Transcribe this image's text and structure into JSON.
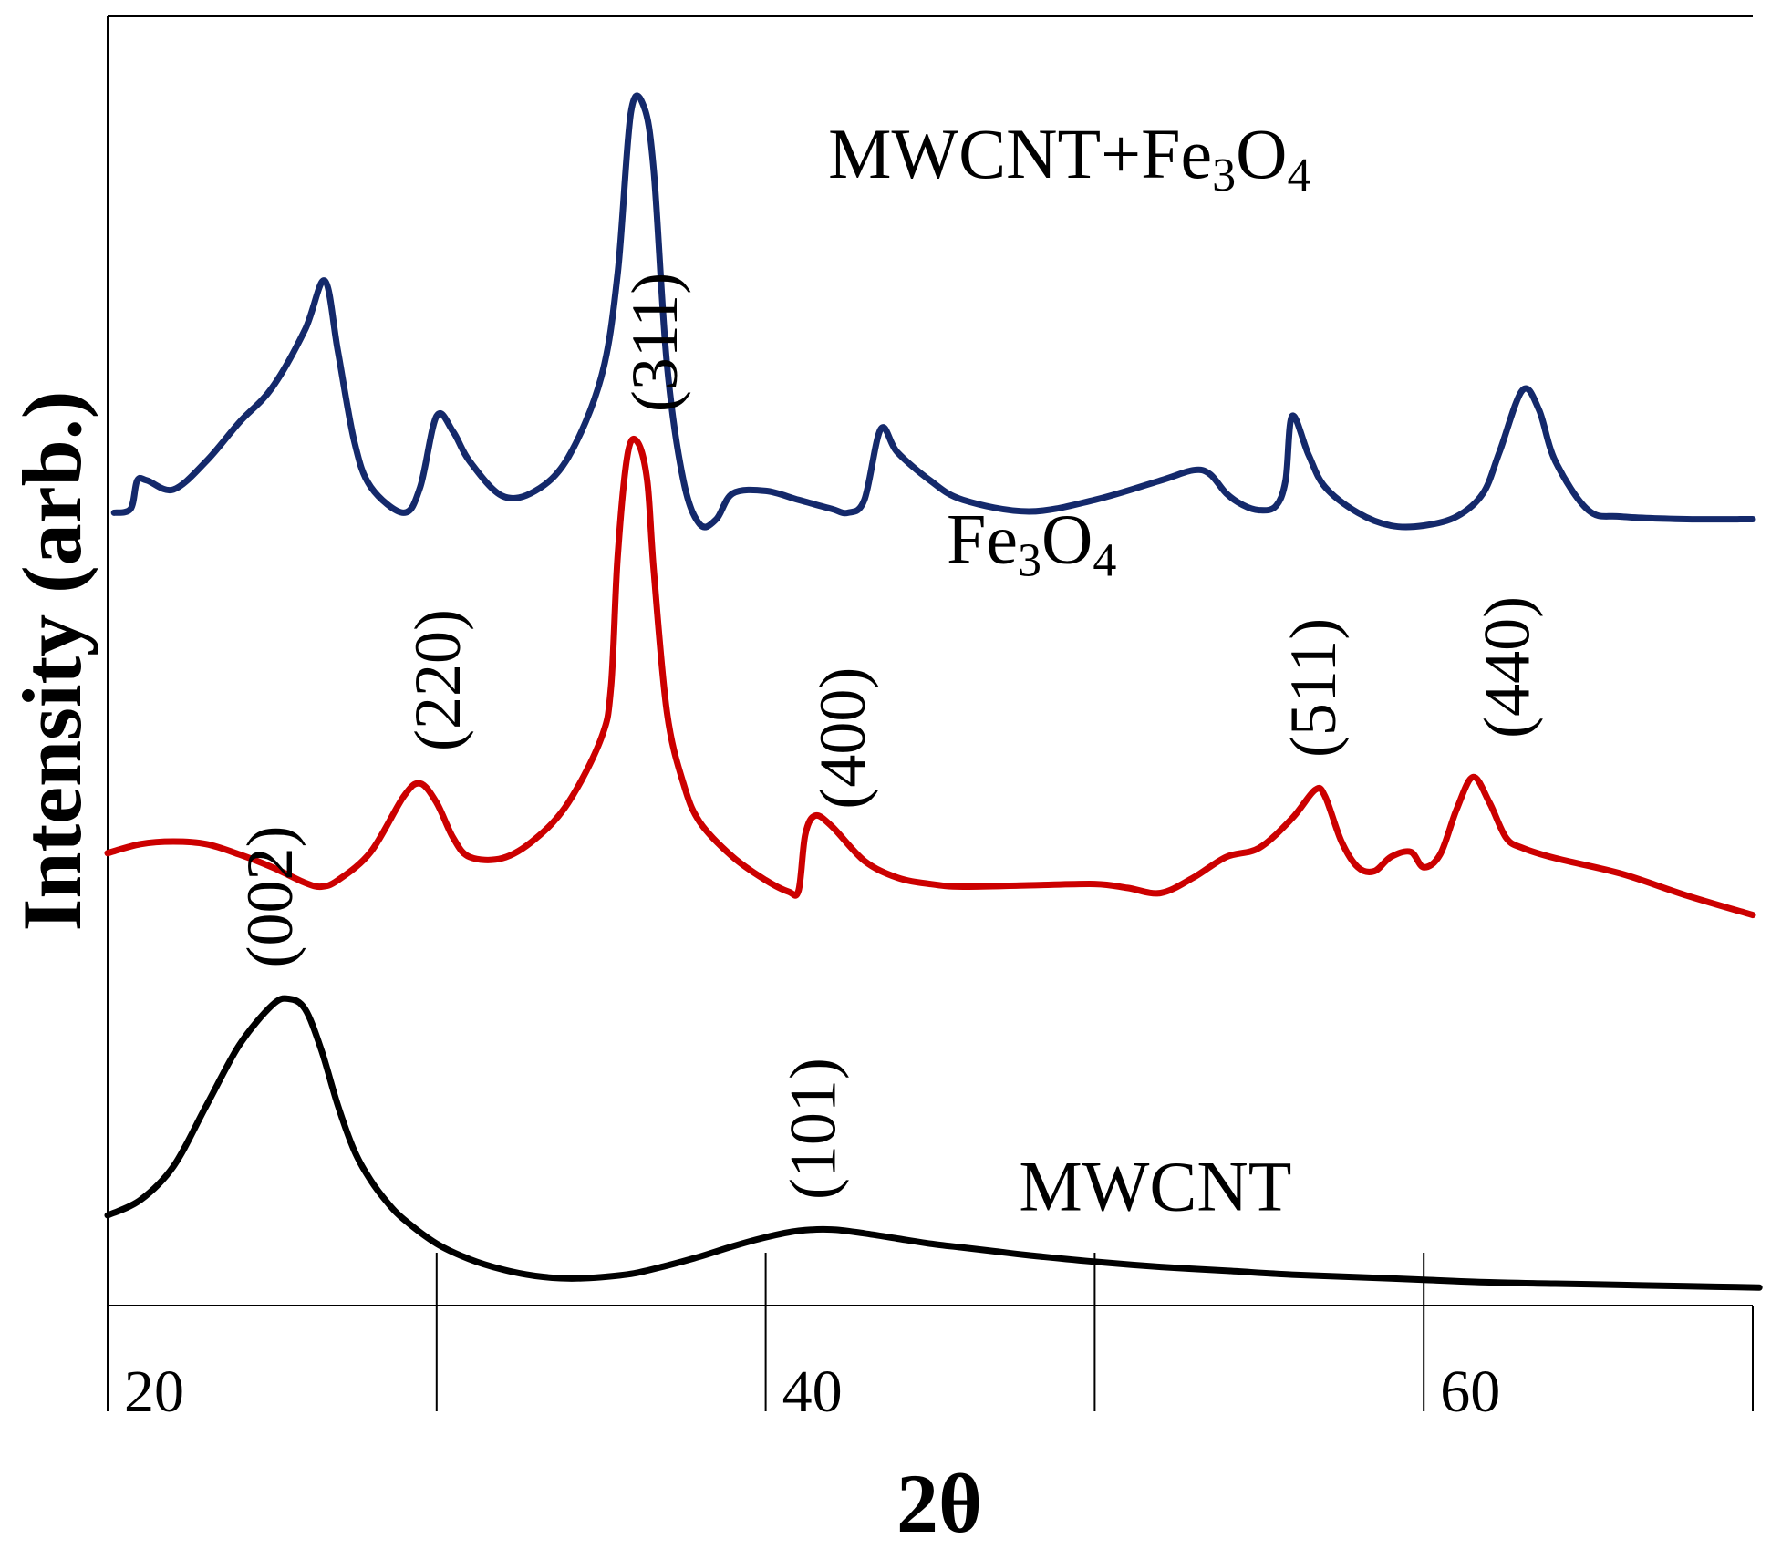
{
  "chart_data": {
    "type": "line",
    "title": "",
    "xlabel": "2θ",
    "ylabel": "Intensity (arb.)",
    "xlim": [
      20,
      70
    ],
    "ylim": [
      0,
      10
    ],
    "x_ticks": [
      20,
      30,
      40,
      50,
      60,
      70
    ],
    "x_tick_labels": [
      "20",
      "40",
      "60"
    ],
    "x_tick_label_values": [
      20,
      40,
      60
    ],
    "grid": false,
    "series": [
      {
        "name": "MWCNT",
        "label": "MWCNT",
        "label_parts": [
          {
            "t": "MWCNT",
            "sub": false
          }
        ],
        "label_x": 47.7,
        "label_y": 0.74,
        "color": "#000000",
        "x": [
          20.0,
          21.0,
          22.0,
          23.0,
          24.0,
          25.0,
          25.5,
          26.0,
          26.5,
          27.0,
          27.5,
          28.0,
          28.5,
          29.0,
          30.0,
          31.0,
          32.0,
          33.0,
          34.0,
          35.0,
          36.0,
          37.0,
          38.0,
          39.0,
          40.0,
          41.0,
          42.0,
          43.0,
          44.0,
          45.0,
          46.0,
          47.0,
          48.0,
          50.0,
          52.0,
          54.0,
          56.0,
          58.0,
          60.0,
          62.0,
          64.0,
          66.0,
          68.0,
          70.2
        ],
        "y": [
          0.7,
          0.82,
          1.08,
          1.55,
          2.02,
          2.33,
          2.38,
          2.3,
          1.98,
          1.55,
          1.2,
          0.97,
          0.8,
          0.67,
          0.48,
          0.36,
          0.28,
          0.23,
          0.21,
          0.22,
          0.25,
          0.31,
          0.38,
          0.46,
          0.53,
          0.58,
          0.59,
          0.56,
          0.52,
          0.48,
          0.45,
          0.42,
          0.39,
          0.34,
          0.3,
          0.27,
          0.24,
          0.22,
          0.2,
          0.18,
          0.17,
          0.16,
          0.15,
          0.14
        ]
      },
      {
        "name": "Fe3O4",
        "label": "Fe3O4",
        "label_parts": [
          {
            "t": "Fe",
            "sub": false
          },
          {
            "t": "3",
            "sub": true
          },
          {
            "t": "O",
            "sub": false
          },
          {
            "t": "4",
            "sub": true
          }
        ],
        "label_x": 45.5,
        "label_y": 5.76,
        "color": "#cc0000",
        "x": [
          20.0,
          21.0,
          22.0,
          23.0,
          24.0,
          25.0,
          26.0,
          26.5,
          27.0,
          28.0,
          29.0,
          29.5,
          30.0,
          30.5,
          31.0,
          32.0,
          33.0,
          34.0,
          35.0,
          35.3,
          35.5,
          35.8,
          36.1,
          36.4,
          36.6,
          37.0,
          37.5,
          38.0,
          39.0,
          40.0,
          40.7,
          41.0,
          41.2,
          41.5,
          42.0,
          43.0,
          44.0,
          45.0,
          46.0,
          48.0,
          50.0,
          51.0,
          52.0,
          53.0,
          54.0,
          55.0,
          56.0,
          56.7,
          57.0,
          57.5,
          58.0,
          58.5,
          59.0,
          59.6,
          60.0,
          60.5,
          61.0,
          61.5,
          62.0,
          62.5,
          63.0,
          64.0,
          66.0,
          68.0,
          70.0
        ],
        "y": [
          3.51,
          3.58,
          3.6,
          3.58,
          3.5,
          3.4,
          3.28,
          3.25,
          3.3,
          3.52,
          3.95,
          4.05,
          3.9,
          3.63,
          3.48,
          3.47,
          3.62,
          3.9,
          4.4,
          4.8,
          5.8,
          6.6,
          6.7,
          6.4,
          5.7,
          4.6,
          4.05,
          3.75,
          3.48,
          3.3,
          3.21,
          3.22,
          3.65,
          3.8,
          3.72,
          3.45,
          3.32,
          3.27,
          3.25,
          3.26,
          3.27,
          3.24,
          3.2,
          3.32,
          3.48,
          3.55,
          3.78,
          4.0,
          3.95,
          3.6,
          3.4,
          3.37,
          3.48,
          3.52,
          3.4,
          3.5,
          3.85,
          4.1,
          3.9,
          3.63,
          3.55,
          3.47,
          3.35,
          3.18,
          3.03
        ]
      },
      {
        "name": "MWCNT+Fe3O4",
        "label": "MWCNT+Fe3O4",
        "label_parts": [
          {
            "t": "MWCNT+Fe",
            "sub": false
          },
          {
            "t": "3",
            "sub": true
          },
          {
            "t": "O",
            "sub": false
          },
          {
            "t": "4",
            "sub": true
          }
        ],
        "label_x": 41.9,
        "label_y": 8.75,
        "color": "#14296b",
        "x": [
          20.2,
          20.7,
          20.9,
          21.2,
          22.0,
          23.0,
          24.0,
          25.0,
          26.0,
          26.6,
          27.0,
          27.5,
          28.0,
          29.0,
          29.5,
          30.0,
          30.5,
          31.0,
          32.0,
          33.0,
          34.0,
          35.0,
          35.5,
          35.9,
          36.3,
          36.6,
          37.0,
          37.5,
          38.0,
          38.5,
          39.0,
          40.0,
          41.0,
          42.0,
          42.5,
          43.0,
          43.5,
          44.0,
          45.0,
          46.0,
          48.0,
          50.0,
          52.0,
          53.0,
          53.5,
          54.0,
          54.5,
          55.0,
          55.5,
          55.8,
          56.0,
          56.5,
          57.0,
          58.0,
          59.0,
          60.0,
          61.0,
          61.8,
          62.3,
          63.0,
          63.5,
          64.0,
          65.0,
          66.0,
          68.0,
          70.0
        ],
        "y": [
          6.15,
          6.18,
          6.4,
          6.4,
          6.33,
          6.55,
          6.85,
          7.12,
          7.57,
          7.95,
          7.4,
          6.7,
          6.35,
          6.15,
          6.35,
          6.9,
          6.78,
          6.55,
          6.28,
          6.32,
          6.58,
          7.2,
          8.0,
          9.25,
          9.3,
          8.8,
          7.3,
          6.4,
          6.06,
          6.1,
          6.3,
          6.32,
          6.25,
          6.18,
          6.15,
          6.25,
          6.8,
          6.62,
          6.4,
          6.25,
          6.16,
          6.25,
          6.4,
          6.48,
          6.45,
          6.3,
          6.21,
          6.17,
          6.2,
          6.4,
          6.9,
          6.6,
          6.35,
          6.15,
          6.05,
          6.05,
          6.12,
          6.3,
          6.62,
          7.1,
          6.95,
          6.55,
          6.17,
          6.12,
          6.1,
          6.1
        ]
      }
    ],
    "annotations": [
      {
        "text": "(002)",
        "x": 25.6,
        "y": 2.62,
        "rotation": -90
      },
      {
        "text": "(101)",
        "x": 42.1,
        "y": 0.82,
        "rotation": -90
      },
      {
        "text": "(220)",
        "x": 30.7,
        "y": 4.3,
        "rotation": -90
      },
      {
        "text": "(311)",
        "x": 37.3,
        "y": 6.93,
        "rotation": -90
      },
      {
        "text": "(400)",
        "x": 43.0,
        "y": 3.85,
        "rotation": -90
      },
      {
        "text": "(511)",
        "x": 57.3,
        "y": 4.25,
        "rotation": -90
      },
      {
        "text": "(440)",
        "x": 63.2,
        "y": 4.4,
        "rotation": -90
      }
    ]
  }
}
